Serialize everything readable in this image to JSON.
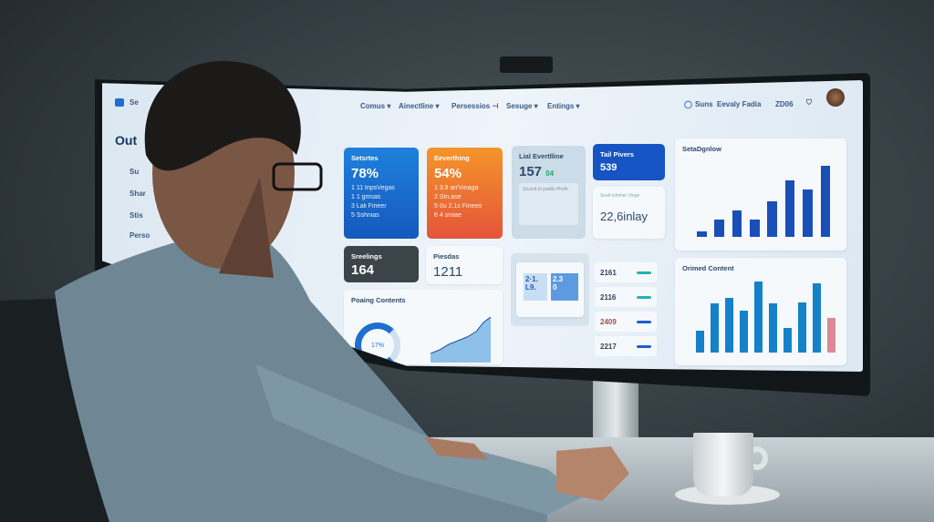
{
  "sidebar": {
    "logo": "Se",
    "title": "Out",
    "items": [
      "Su",
      "Shar",
      "Stis",
      "Perso"
    ]
  },
  "nav": {
    "items": [
      "Comus ▾",
      "Ainectline ▾",
      "Persessios ⊣",
      "Sesuge ▾",
      "Entings ▾"
    ],
    "right": [
      "Suns",
      "Eevaly Fadia",
      "ZD06"
    ]
  },
  "cards": {
    "blue": {
      "title": "Setsrtes",
      "value": "78%",
      "lines": [
        "1 11 tnpsVegas",
        "1 1 gmsas",
        "3 Lali Fineer",
        "5 Sshnias"
      ],
      "color": "#1b73d3"
    },
    "orange": {
      "title": "Eeverthing",
      "value": "54%",
      "lines": [
        "1 3.8 an'Vinaga",
        "2 Stn.ase",
        "5 0u 2.1s Fineeo",
        "6 4 sniiae"
      ],
      "color": "#f0862a"
    },
    "gray": {
      "title": "Lial Evertlline",
      "value": "157",
      "badge": "04",
      "sub": "Sourcit lo paidlo Pholh"
    },
    "tail": {
      "title": "Tail Pivers",
      "value": "539"
    },
    "white": {
      "sub": "Sealt Ishimer Vinge",
      "value": "22,6inlay"
    },
    "dark": {
      "title": "Sreelings",
      "value": "164"
    },
    "plain": {
      "title": "Piesdas",
      "value": "1211"
    },
    "polar": {
      "title": "Poaing Contents",
      "gauge": "17%"
    },
    "mini": {
      "a": "2·1.",
      "b": "L9.",
      "c": "2.3",
      "d": "0"
    },
    "list": [
      {
        "value": "2161",
        "color": "#1fb5b0"
      },
      {
        "value": "2116",
        "color": "#1fb5b0"
      },
      {
        "value": "2409",
        "color": "#1d5fd0"
      },
      {
        "value": "2217",
        "color": "#1d5fd0"
      }
    ]
  },
  "chart_data": [
    {
      "type": "bar",
      "title": "SetaDgnlow",
      "values": [
        1,
        3,
        4.5,
        3,
        6,
        9.5,
        8,
        12
      ],
      "color": "#1a4fb8"
    },
    {
      "type": "bar",
      "title": "Orimed Content",
      "values": [
        3,
        6.8,
        7.6,
        5.8,
        9.9,
        6.8,
        3.4,
        7,
        9.6,
        4.8
      ],
      "colors": [
        "#1581c9",
        "#1581c9",
        "#1581c9",
        "#1581c9",
        "#1581c9",
        "#1581c9",
        "#1581c9",
        "#1581c9",
        "#1581c9",
        "#d98a96"
      ]
    }
  ]
}
